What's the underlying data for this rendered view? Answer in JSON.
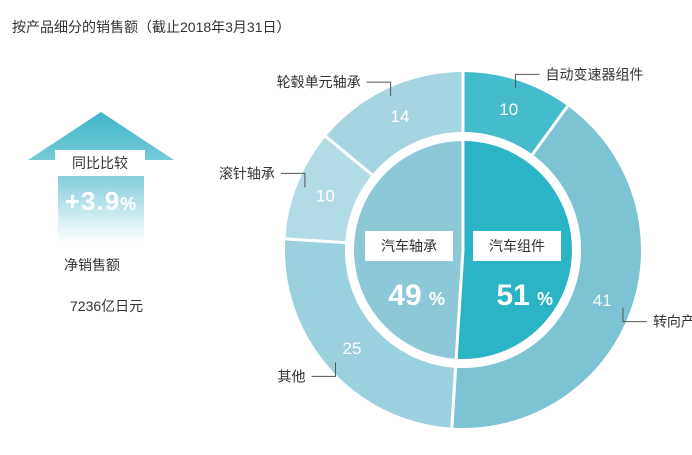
{
  "title": "按产品细分的销售额（截止2018年3月31日）",
  "growth": {
    "label": "同比比较",
    "value": "+3.9",
    "unit": "%",
    "color": "#3fb7c8"
  },
  "net_sales": {
    "label": "净销售额",
    "value": "7236亿日元"
  },
  "chart_data": {
    "type": "pie",
    "inner": {
      "segments": [
        {
          "label": "汽车组件",
          "value": 51,
          "unit": "%",
          "color": "#2bb3c6"
        },
        {
          "label": "汽车轴承",
          "value": 49,
          "unit": "%",
          "color": "#8cc8d8"
        }
      ]
    },
    "outer": {
      "segments": [
        {
          "label": "自动变速器组件",
          "value": 10,
          "color": "#44bccc"
        },
        {
          "label": "转向产品",
          "value": 41,
          "color": "#7cc3d4"
        },
        {
          "label": "其他",
          "value": 25,
          "color": "#9bd0de"
        },
        {
          "label": "滚针轴承",
          "value": 10,
          "color": "#b1dbe5"
        },
        {
          "label": "轮毂单元轴承",
          "value": 14,
          "color": "#a4d5e1"
        }
      ]
    }
  }
}
